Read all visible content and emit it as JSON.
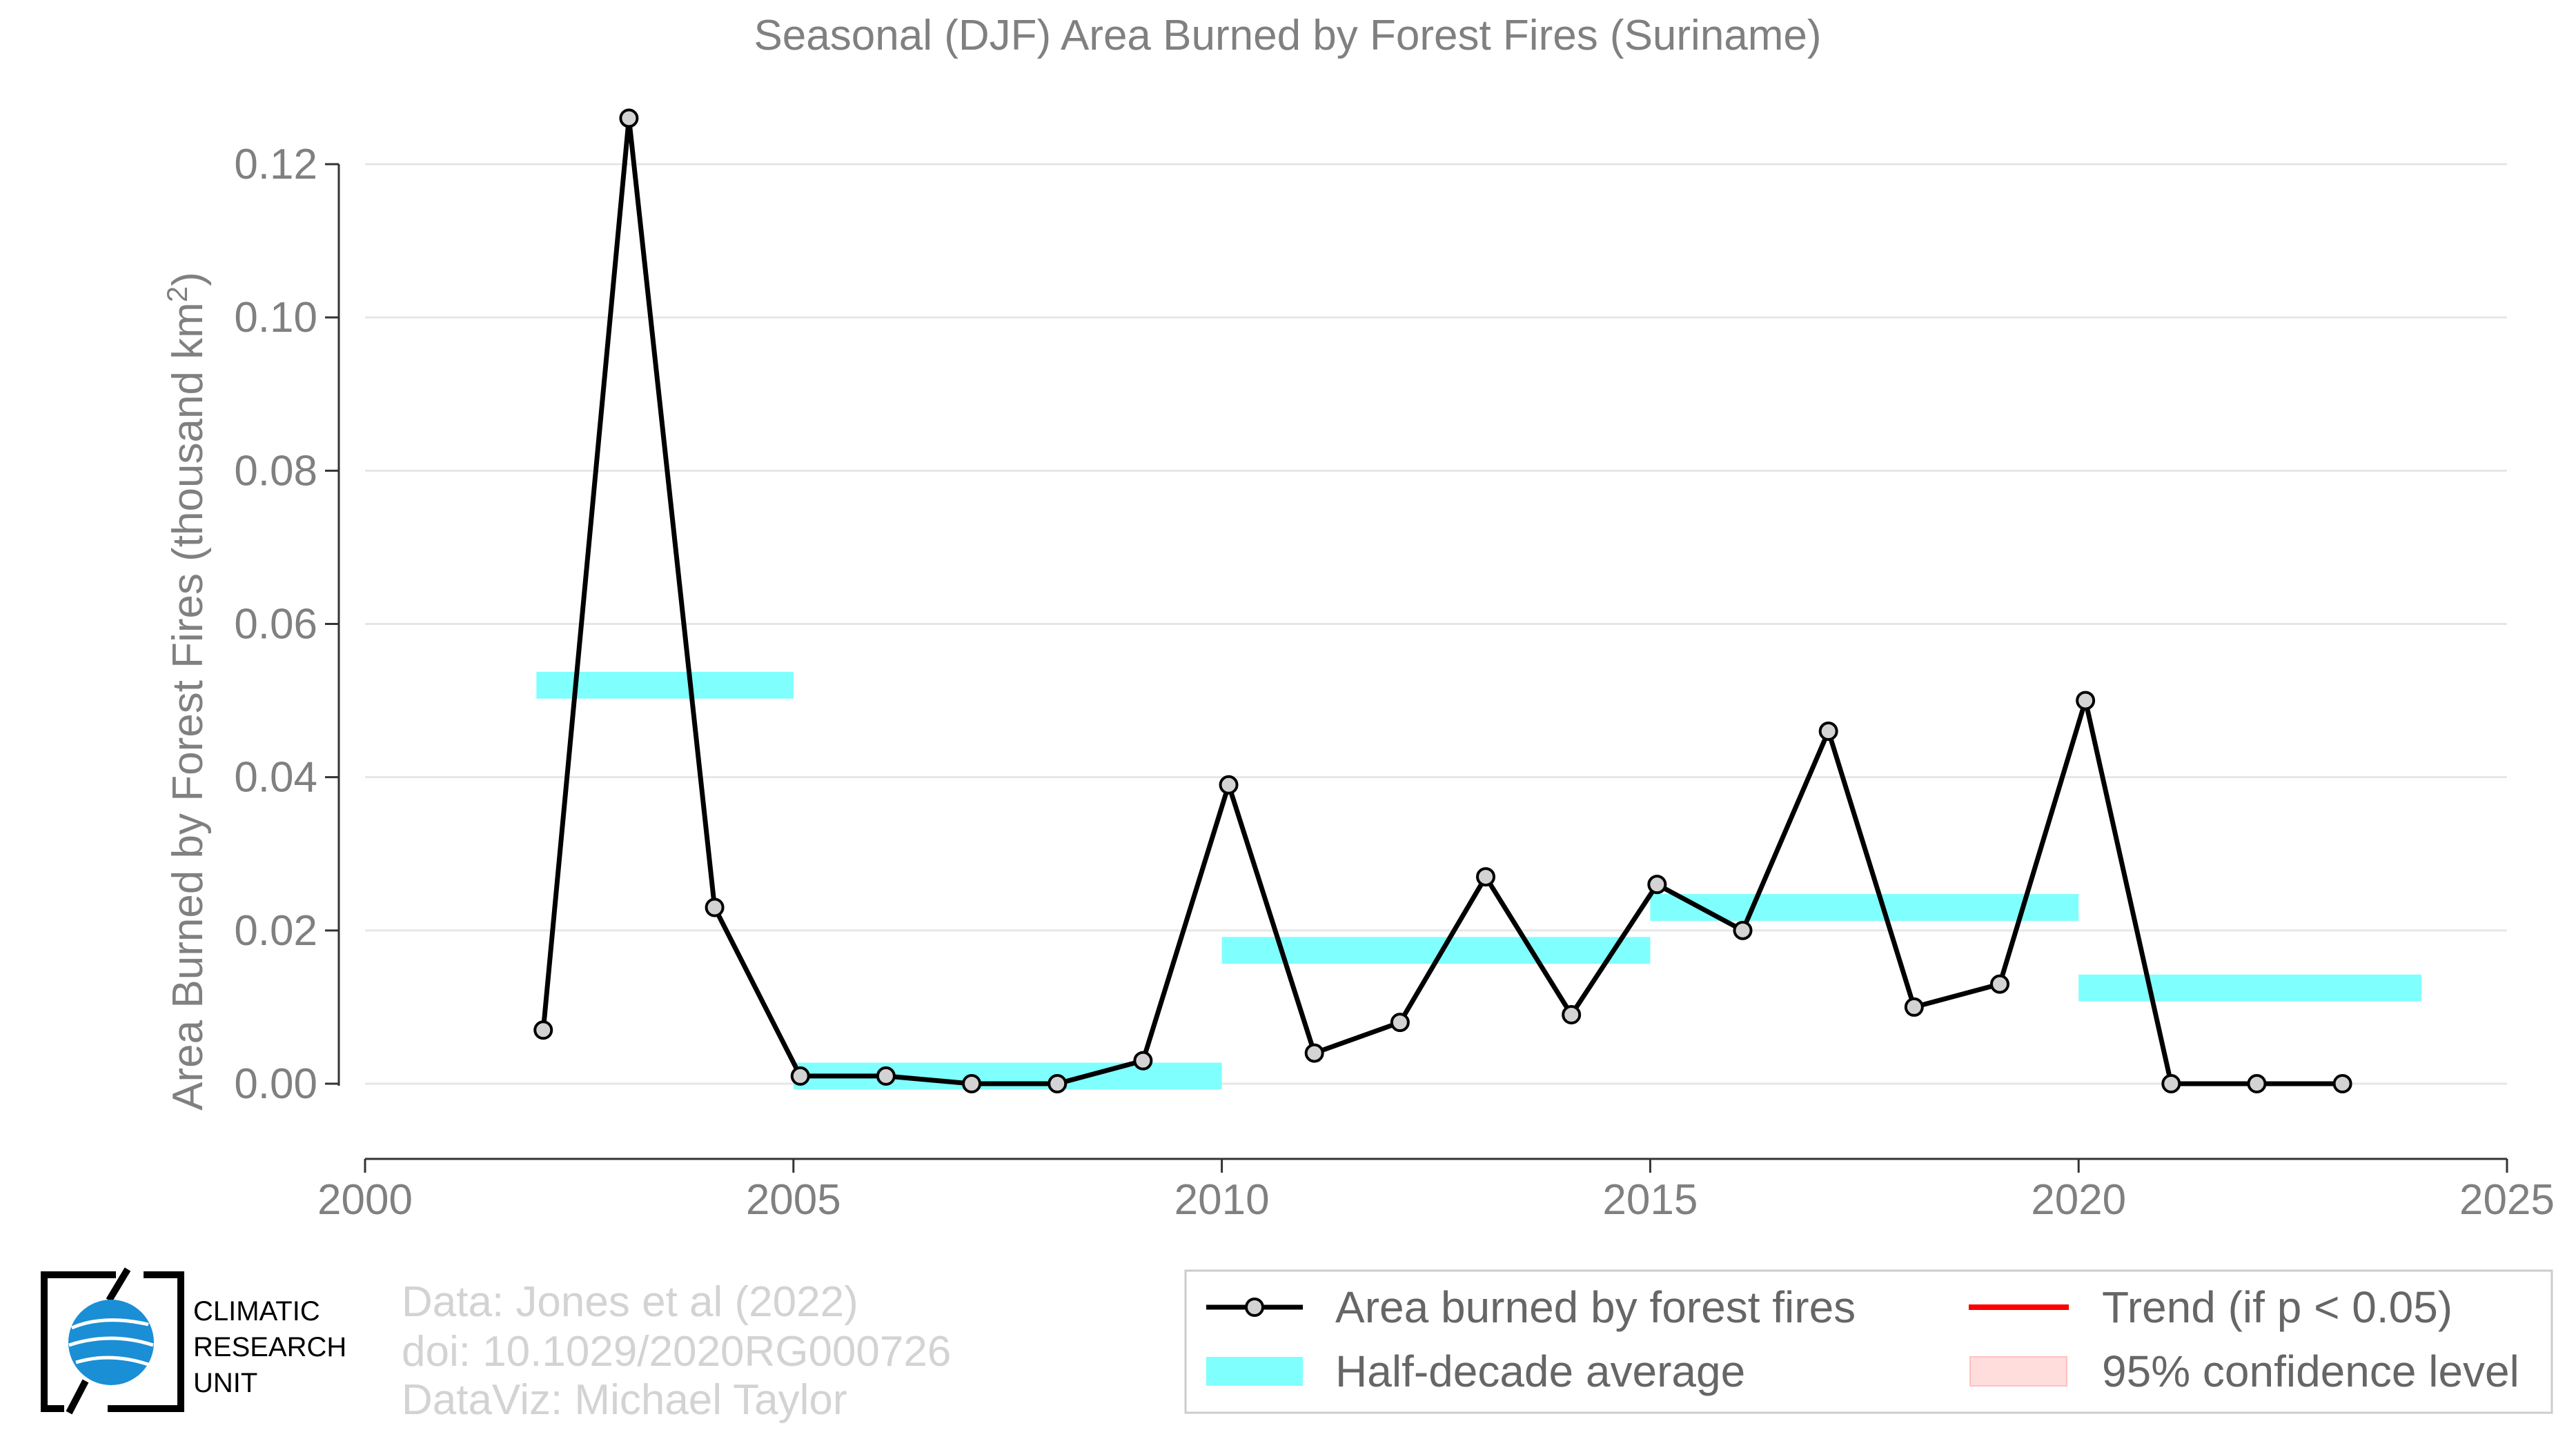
{
  "chart_data": {
    "type": "line",
    "title": "Seasonal (DJF) Area Burned by Forest Fires (Suriname)",
    "xlabel": "",
    "ylabel": "Area Burned by Forest Fires (thousand km",
    "ylabel_sup": "2",
    "ylabel_end": ")",
    "xlim": [
      2000,
      2025
    ],
    "ylim": [
      -0.01,
      0.13
    ],
    "x_ticks": [
      2000,
      2005,
      2010,
      2015,
      2020,
      2025
    ],
    "y_ticks": [
      0.0,
      0.02,
      0.04,
      0.06,
      0.08,
      0.1,
      0.12
    ],
    "y_tick_labels": [
      "0.00",
      "0.02",
      "0.04",
      "0.06",
      "0.08",
      "0.10",
      "0.12"
    ],
    "grid": "horizontal",
    "series": [
      {
        "name": "Area burned by forest fires",
        "color": "#000000",
        "marker_fill": "#d3d3d3",
        "x": [
          2002,
          2003,
          2004,
          2005,
          2006,
          2007,
          2008,
          2009,
          2010,
          2011,
          2012,
          2013,
          2014,
          2015,
          2016,
          2017,
          2018,
          2019,
          2020,
          2021,
          2022,
          2023
        ],
        "y": [
          0.007,
          0.126,
          0.023,
          0.001,
          0.001,
          0.0,
          0.0,
          0.003,
          0.039,
          0.004,
          0.008,
          0.027,
          0.009,
          0.026,
          0.02,
          0.046,
          0.01,
          0.013,
          0.05,
          0.0,
          0.0,
          0.0
        ]
      }
    ],
    "half_decade_average": {
      "name": "Half-decade average",
      "color": "#80ffff",
      "segments": [
        {
          "x_start": 2002,
          "x_end": 2005,
          "value": 0.052
        },
        {
          "x_start": 2005,
          "x_end": 2010,
          "value": 0.001
        },
        {
          "x_start": 2010,
          "x_end": 2015,
          "value": 0.0174
        },
        {
          "x_start": 2015,
          "x_end": 2020,
          "value": 0.023
        },
        {
          "x_start": 2020,
          "x_end": 2024,
          "value": 0.0125
        }
      ]
    },
    "legend": {
      "placement": "bottom-right",
      "entries": [
        {
          "label": "Area burned by forest fires",
          "kind": "line-marker",
          "color": "#000000"
        },
        {
          "label": "Trend (if p < 0.05)",
          "kind": "line",
          "color": "#ff0000"
        },
        {
          "label": "Half-decade average",
          "kind": "band",
          "color": "#80ffff"
        },
        {
          "label": "95% confidence level",
          "kind": "band",
          "color": "#ffdddd"
        }
      ]
    }
  },
  "credits": {
    "line1": "Data: Jones et al (2022)",
    "line2": "doi: 10.1029/2020RG000726",
    "line3": "DataViz: Michael Taylor"
  },
  "logo": {
    "line1": "CLIMATIC",
    "line2": "RESEARCH",
    "line3": "UNIT"
  }
}
